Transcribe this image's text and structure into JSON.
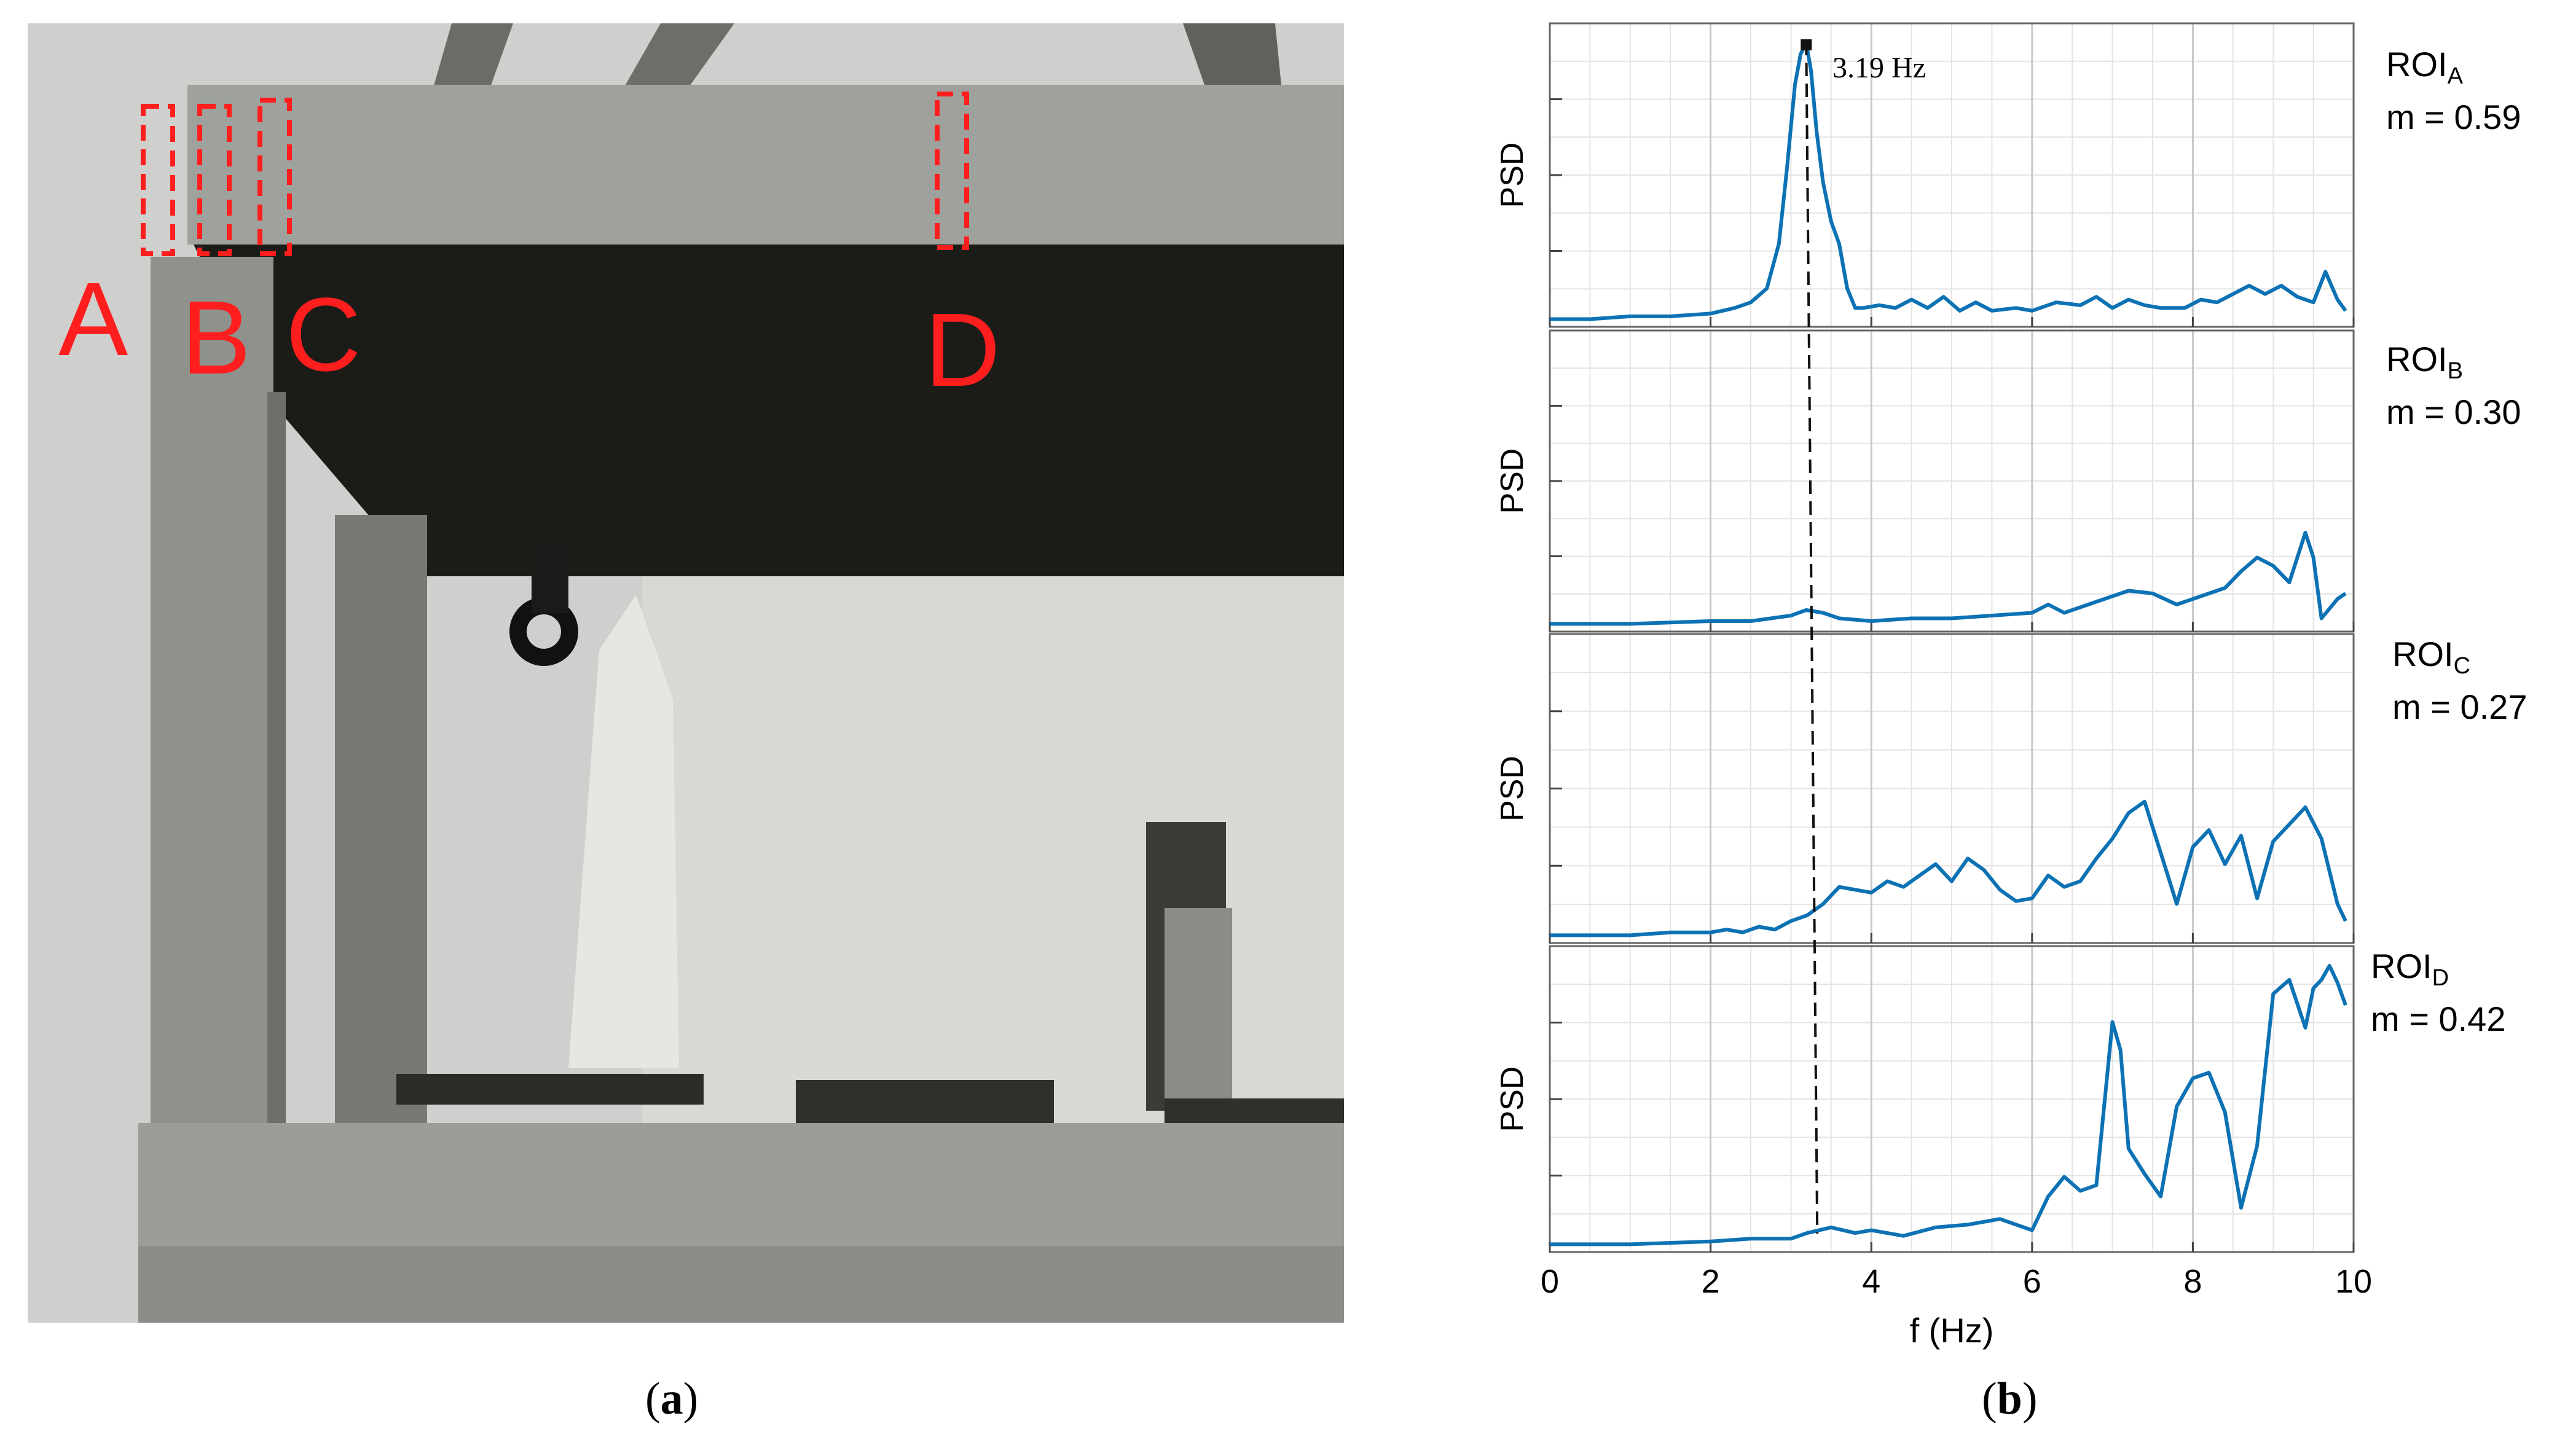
{
  "figure": {
    "panel_a_label": "a",
    "panel_b_label": "b"
  },
  "photo": {
    "roi_letters": [
      "A",
      "B",
      "C",
      "D"
    ]
  },
  "colors": {
    "curve": "#0d72b4",
    "roi_box": "#ff1e1e",
    "grid": "#e4e4e4"
  },
  "chart_data": {
    "type": "line",
    "xlabel": "f (Hz)",
    "ylabel": "PSD",
    "xlim": [
      0,
      10
    ],
    "x_ticks": [
      0,
      2,
      4,
      6,
      8,
      10
    ],
    "grid": true,
    "reference_line": {
      "x": 3.19,
      "style": "dashed"
    },
    "peak_annotation": "3.19 Hz",
    "subplots": [
      {
        "roi_name": "ROI",
        "roi_sub": "A",
        "m_text": "m = 0.59",
        "x": [
          0,
          0.5,
          1,
          1.5,
          2,
          2.3,
          2.5,
          2.7,
          2.85,
          2.95,
          3.05,
          3.12,
          3.19,
          3.25,
          3.32,
          3.4,
          3.5,
          3.6,
          3.7,
          3.8,
          3.9,
          4.1,
          4.3,
          4.5,
          4.7,
          4.9,
          5.1,
          5.3,
          5.5,
          5.8,
          6,
          6.3,
          6.6,
          6.8,
          7,
          7.2,
          7.4,
          7.6,
          7.9,
          8.1,
          8.3,
          8.5,
          8.7,
          8.9,
          9.1,
          9.3,
          9.5,
          9.65,
          9.8,
          9.9
        ],
        "y": [
          0.01,
          0.01,
          0.02,
          0.02,
          0.03,
          0.05,
          0.07,
          0.12,
          0.28,
          0.55,
          0.85,
          0.96,
          1.0,
          0.9,
          0.68,
          0.5,
          0.36,
          0.28,
          0.12,
          0.05,
          0.05,
          0.06,
          0.05,
          0.08,
          0.05,
          0.09,
          0.04,
          0.07,
          0.04,
          0.05,
          0.04,
          0.07,
          0.06,
          0.09,
          0.05,
          0.08,
          0.06,
          0.05,
          0.05,
          0.08,
          0.07,
          0.1,
          0.13,
          0.1,
          0.13,
          0.09,
          0.07,
          0.18,
          0.08,
          0.04
        ]
      },
      {
        "roi_name": "ROI",
        "roi_sub": "B",
        "m_text": "m = 0.30",
        "x": [
          0,
          1,
          2,
          2.5,
          3,
          3.19,
          3.4,
          3.6,
          4,
          4.5,
          5,
          5.5,
          6,
          6.2,
          6.4,
          6.8,
          7.2,
          7.5,
          7.8,
          8,
          8.2,
          8.4,
          8.6,
          8.8,
          9,
          9.2,
          9.4,
          9.5,
          9.6,
          9.8,
          9.9
        ],
        "y": [
          0.01,
          0.01,
          0.02,
          0.02,
          0.04,
          0.06,
          0.05,
          0.03,
          0.02,
          0.03,
          0.03,
          0.04,
          0.05,
          0.08,
          0.05,
          0.09,
          0.13,
          0.12,
          0.08,
          0.1,
          0.12,
          0.14,
          0.2,
          0.25,
          0.22,
          0.16,
          0.34,
          0.25,
          0.03,
          0.1,
          0.12
        ]
      },
      {
        "roi_name": "ROI",
        "roi_sub": "C",
        "m_text": "m = 0.27",
        "x": [
          0,
          1,
          1.5,
          2,
          2.2,
          2.4,
          2.6,
          2.8,
          3,
          3.2,
          3.4,
          3.6,
          3.8,
          4,
          4.2,
          4.4,
          4.6,
          4.8,
          5,
          5.2,
          5.4,
          5.6,
          5.8,
          6,
          6.2,
          6.4,
          6.6,
          6.8,
          7,
          7.2,
          7.4,
          7.6,
          7.8,
          8,
          8.2,
          8.4,
          8.6,
          8.8,
          9,
          9.2,
          9.4,
          9.6,
          9.8,
          9.9
        ],
        "y": [
          0.01,
          0.01,
          0.02,
          0.02,
          0.03,
          0.02,
          0.04,
          0.03,
          0.06,
          0.08,
          0.12,
          0.18,
          0.17,
          0.16,
          0.2,
          0.18,
          0.22,
          0.26,
          0.2,
          0.28,
          0.24,
          0.17,
          0.13,
          0.14,
          0.22,
          0.18,
          0.2,
          0.28,
          0.35,
          0.44,
          0.48,
          0.3,
          0.12,
          0.32,
          0.38,
          0.26,
          0.36,
          0.14,
          0.34,
          0.4,
          0.46,
          0.35,
          0.12,
          0.06
        ]
      },
      {
        "roi_name": "ROI",
        "roi_sub": "D",
        "m_text": "m = 0.42",
        "x": [
          0,
          1,
          2,
          2.5,
          3,
          3.2,
          3.5,
          3.8,
          4,
          4.4,
          4.8,
          5.2,
          5.6,
          6,
          6.2,
          6.4,
          6.6,
          6.8,
          7,
          7.1,
          7.2,
          7.4,
          7.6,
          7.8,
          8,
          8.2,
          8.4,
          8.6,
          8.8,
          9,
          9.2,
          9.4,
          9.5,
          9.6,
          9.7,
          9.8,
          9.9
        ],
        "y": [
          0.01,
          0.01,
          0.02,
          0.03,
          0.03,
          0.05,
          0.07,
          0.05,
          0.06,
          0.04,
          0.07,
          0.08,
          0.1,
          0.06,
          0.18,
          0.25,
          0.2,
          0.22,
          0.8,
          0.7,
          0.35,
          0.26,
          0.18,
          0.5,
          0.6,
          0.62,
          0.48,
          0.14,
          0.36,
          0.9,
          0.95,
          0.78,
          0.92,
          0.95,
          1.0,
          0.94,
          0.86
        ]
      }
    ]
  }
}
